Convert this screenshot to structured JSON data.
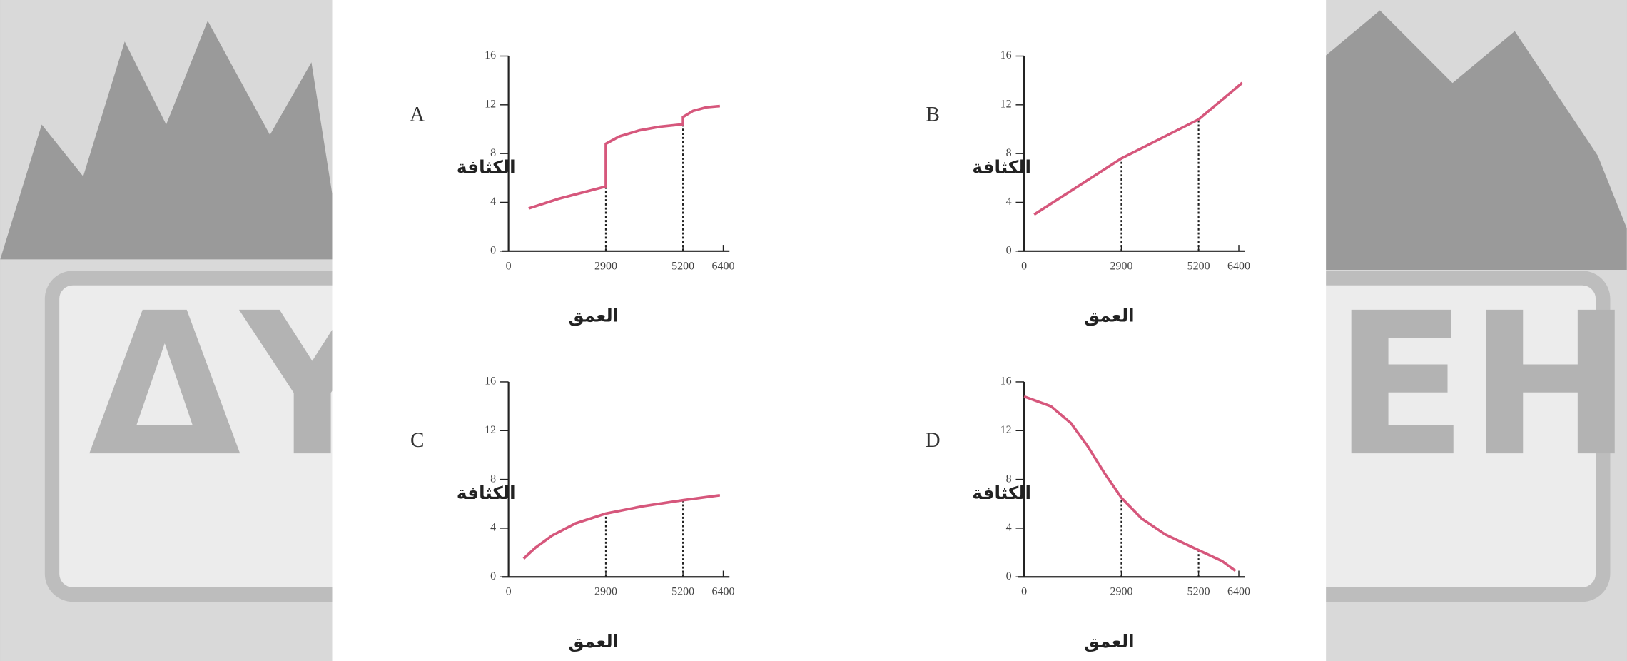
{
  "watermark": {
    "left": "ΔY",
    "right": "EH"
  },
  "chart_data": [
    {
      "type": "line",
      "label": "A",
      "y_label": "الكثافة",
      "x_label": "العمق",
      "xlim": [
        0,
        6400
      ],
      "ylim": [
        0,
        16
      ],
      "xticks": [
        0,
        2900,
        5200,
        6400
      ],
      "yticks": [
        0,
        4,
        8,
        12,
        16
      ],
      "vlines": [
        2900,
        5200
      ],
      "series": [
        {
          "color": "#d6577c",
          "x": [
            600,
            1500,
            2200,
            2900,
            2900,
            3300,
            3900,
            4500,
            5200,
            5200,
            5500,
            5900,
            6300
          ],
          "values": [
            3.5,
            4.3,
            4.8,
            5.3,
            8.8,
            9.4,
            9.9,
            10.2,
            10.4,
            11.0,
            11.5,
            11.8,
            11.9
          ]
        }
      ]
    },
    {
      "type": "line",
      "label": "B",
      "y_label": "الكثافة",
      "x_label": "العمق",
      "xlim": [
        0,
        6400
      ],
      "ylim": [
        0,
        16
      ],
      "xticks": [
        0,
        2900,
        5200,
        6400
      ],
      "yticks": [
        0,
        4,
        8,
        12,
        16
      ],
      "vlines": [
        2900,
        5200
      ],
      "series": [
        {
          "color": "#d6577c",
          "x": [
            300,
            2900,
            5200,
            6500
          ],
          "values": [
            3.0,
            7.6,
            10.8,
            13.8
          ]
        }
      ]
    },
    {
      "type": "line",
      "label": "C",
      "y_label": "الكثافة",
      "x_label": "العمق",
      "xlim": [
        0,
        6400
      ],
      "ylim": [
        0,
        16
      ],
      "xticks": [
        0,
        2900,
        5200,
        6400
      ],
      "yticks": [
        0,
        4,
        8,
        12,
        16
      ],
      "vlines": [
        2900,
        5200
      ],
      "series": [
        {
          "color": "#d6577c",
          "x": [
            450,
            800,
            1300,
            2000,
            2900,
            4000,
            5200,
            6300
          ],
          "values": [
            1.5,
            2.4,
            3.4,
            4.4,
            5.2,
            5.8,
            6.3,
            6.7
          ]
        }
      ]
    },
    {
      "type": "line",
      "label": "D",
      "y_label": "الكثافة",
      "x_label": "العمق",
      "xlim": [
        0,
        6400
      ],
      "ylim": [
        0,
        16
      ],
      "xticks": [
        0,
        2900,
        5200,
        6400
      ],
      "yticks": [
        0,
        4,
        8,
        12,
        16
      ],
      "vlines": [
        2900,
        5200
      ],
      "series": [
        {
          "color": "#d6577c",
          "x": [
            0,
            800,
            1400,
            1900,
            2400,
            2900,
            3500,
            4200,
            5200,
            5900,
            6300
          ],
          "values": [
            14.8,
            14.0,
            12.6,
            10.7,
            8.5,
            6.5,
            4.8,
            3.5,
            2.2,
            1.3,
            0.5
          ]
        }
      ]
    }
  ]
}
